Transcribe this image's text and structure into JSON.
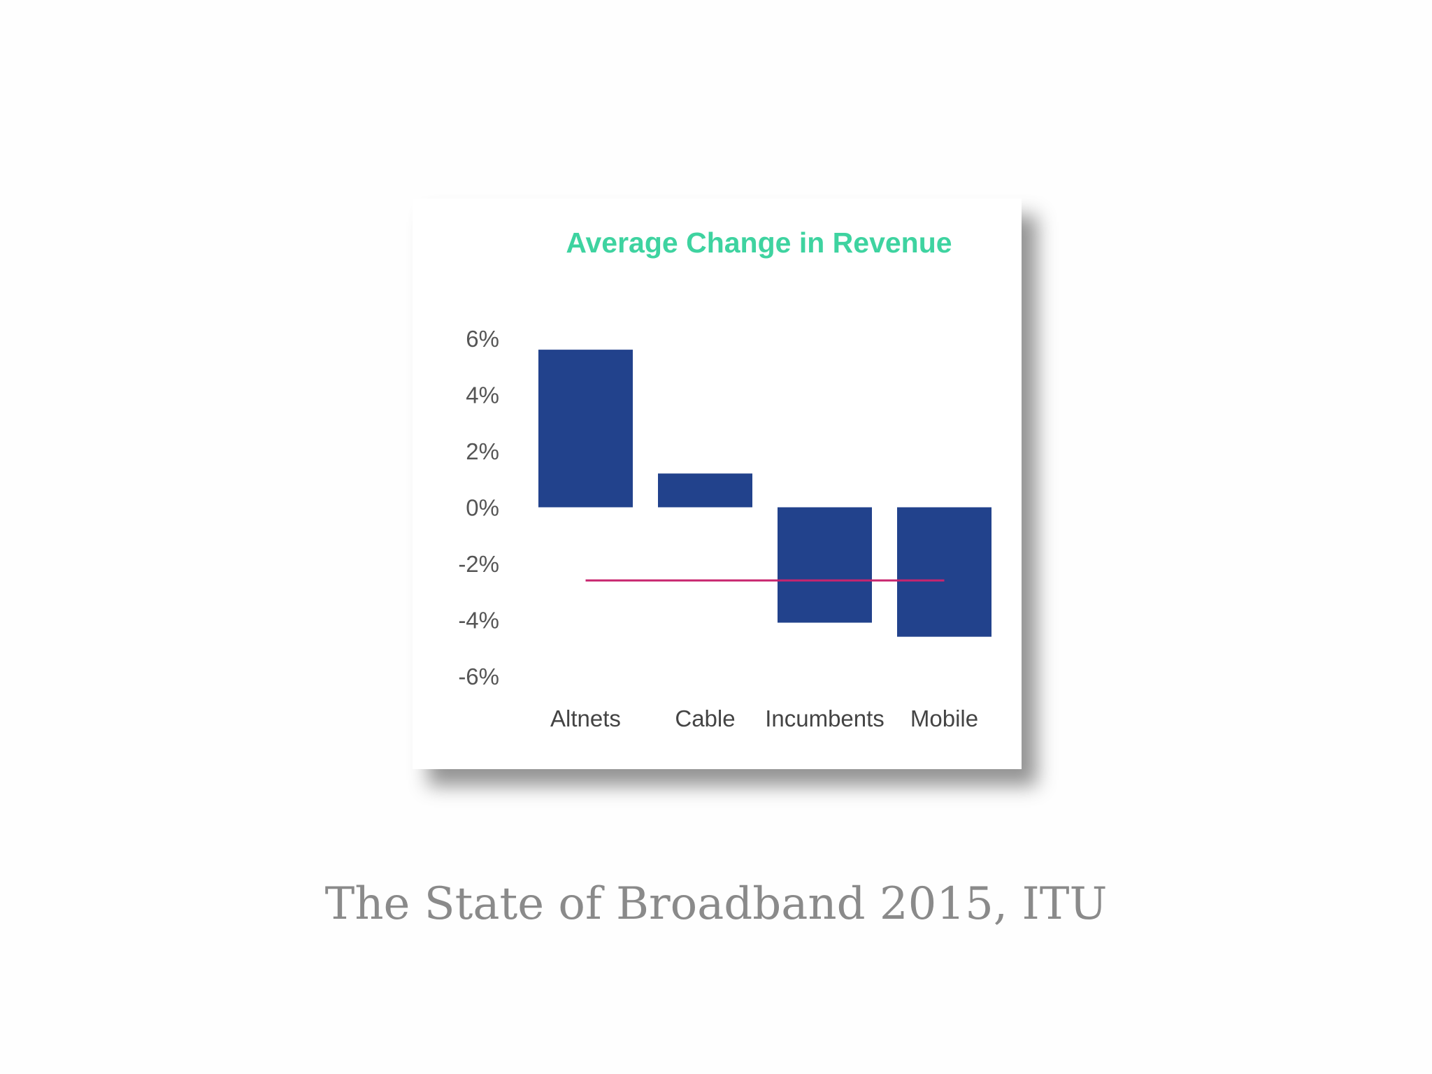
{
  "chart_data": {
    "type": "bar",
    "title": "Average Change in Revenue",
    "categories": [
      "Altnets",
      "Cable",
      "Incumbents",
      "Mobile"
    ],
    "values": [
      5.6,
      1.2,
      -4.1,
      -4.6
    ],
    "reference_line": {
      "value": -2.6,
      "from_category": "Altnets",
      "to_category": "Mobile",
      "color": "#c8246e"
    },
    "ylim": [
      -6,
      6
    ],
    "yticks": [
      6,
      4,
      2,
      0,
      -2,
      -4,
      -6
    ],
    "ytick_labels": [
      "6%",
      "4%",
      "2%",
      "0%",
      "-2%",
      "-4%",
      "-6%"
    ],
    "xlabel": "",
    "ylabel": "",
    "grid": false,
    "bar_color": "#22428c",
    "title_color": "#3ed3a0"
  },
  "caption": "The State of Broadband 2015, ITU"
}
